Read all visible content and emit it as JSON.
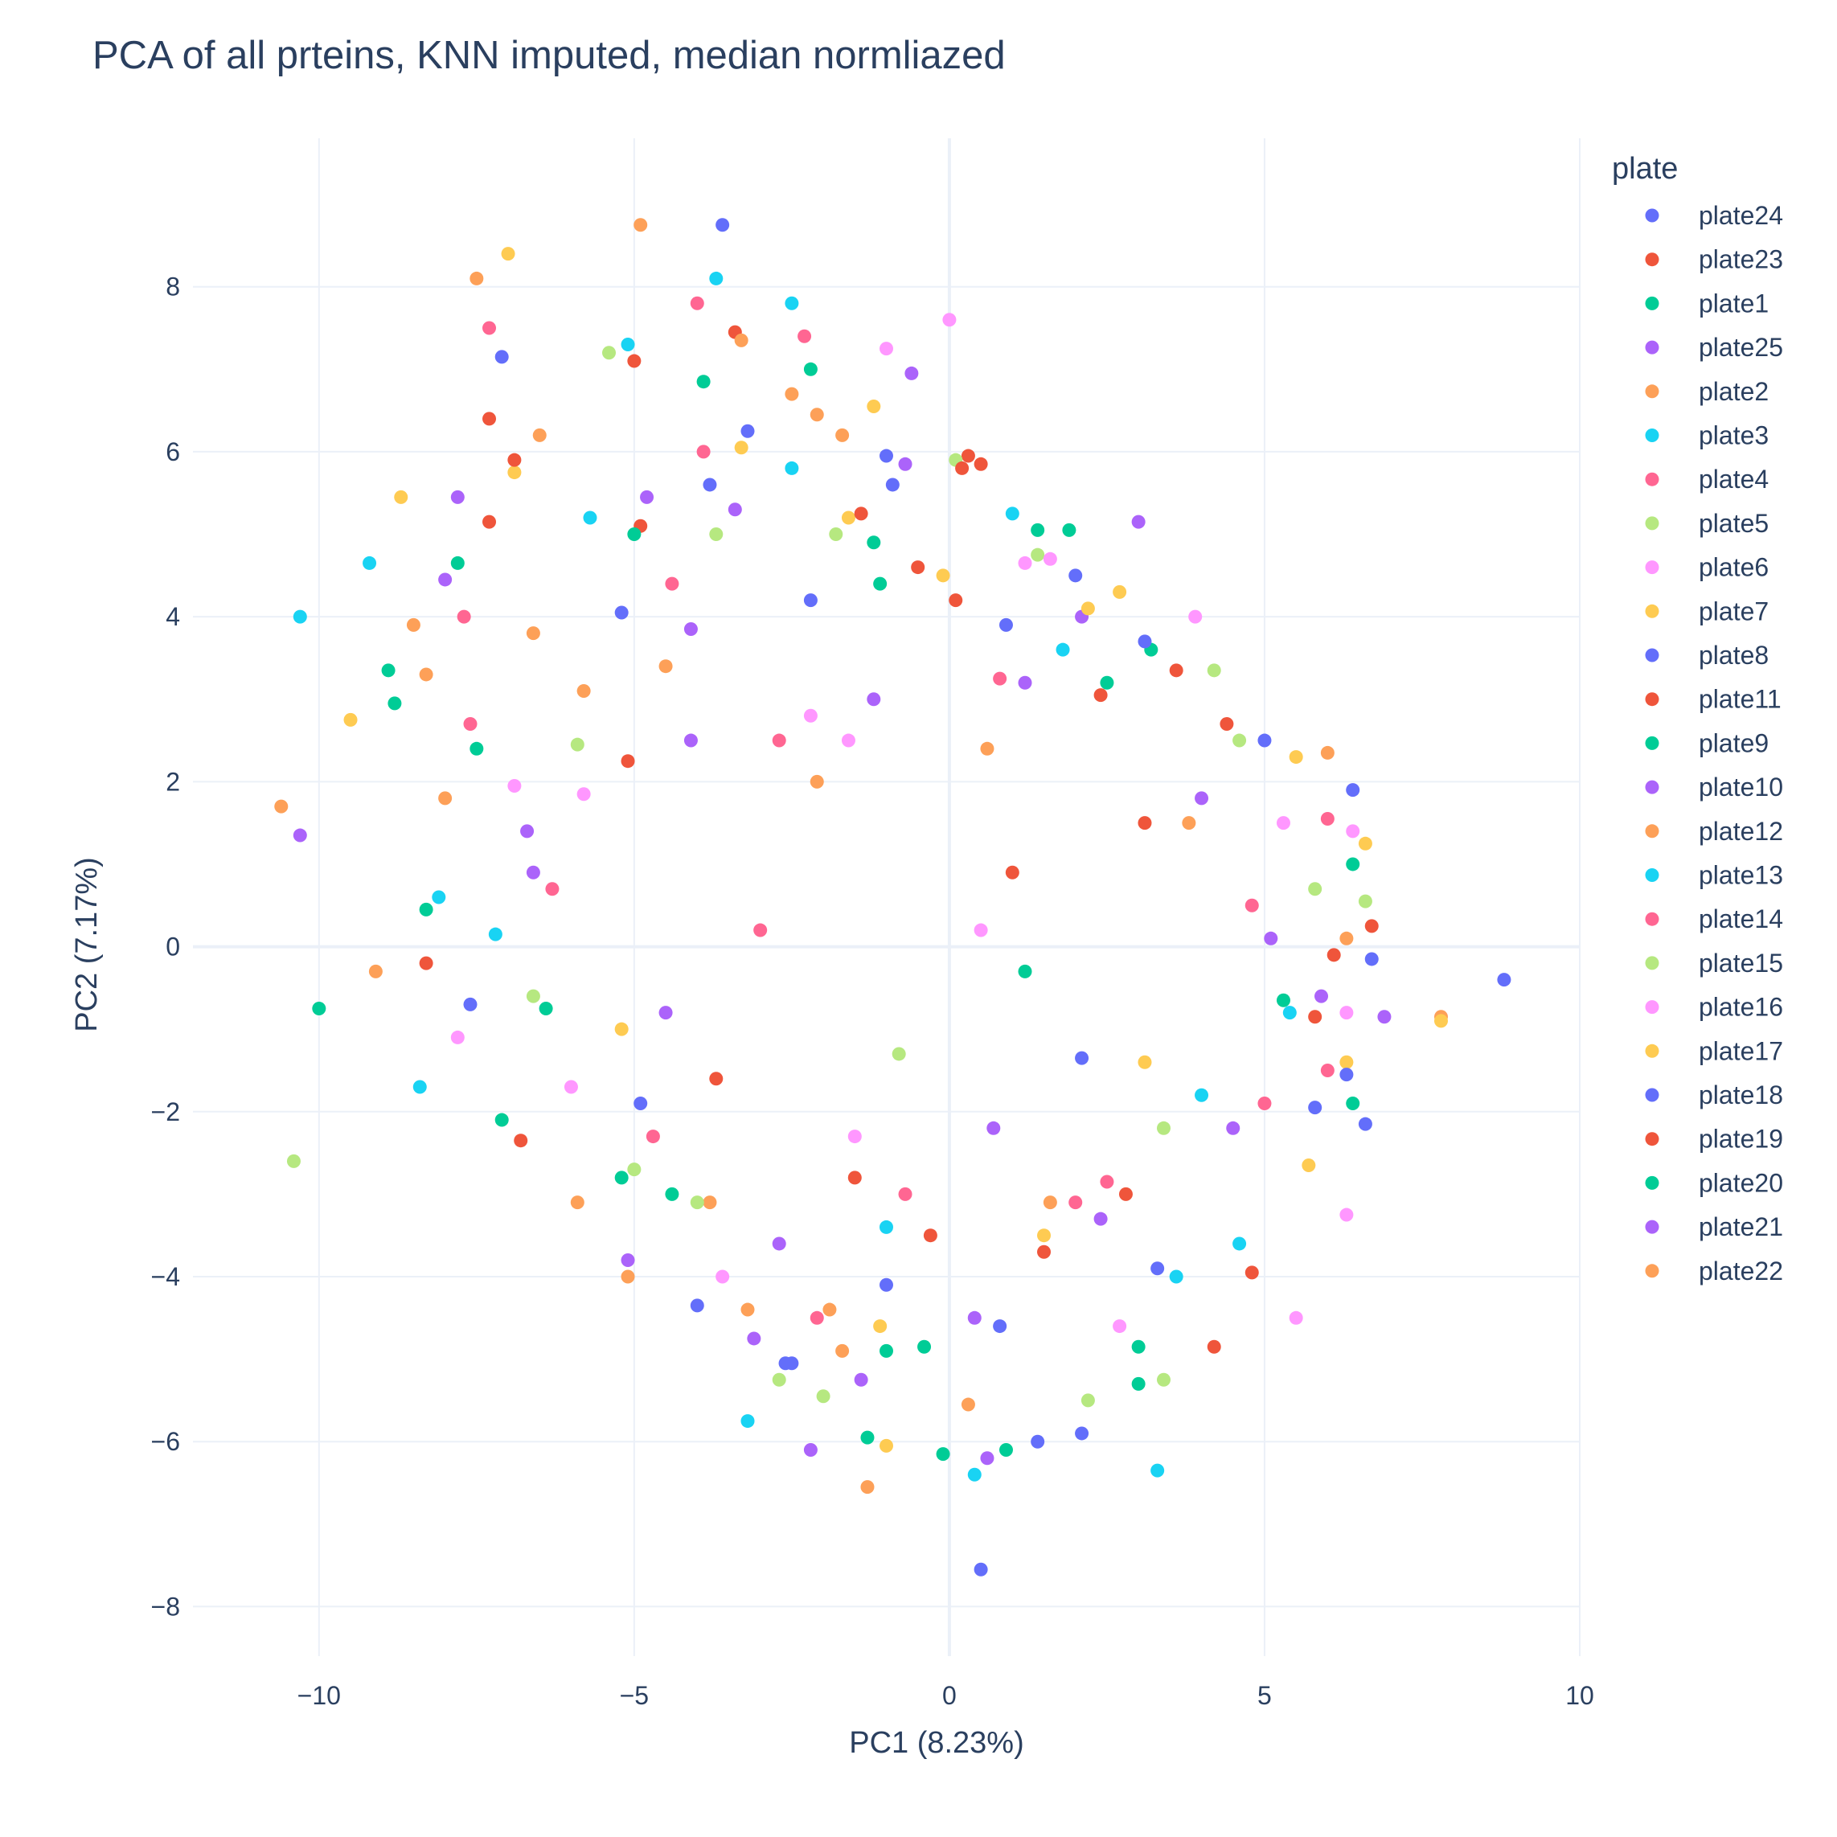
{
  "chart_data": {
    "type": "scatter",
    "title": "PCA of all prteins, KNN imputed, median normliazed",
    "xlabel": "PC1 (8.23%)",
    "ylabel": "PC2 (7.17%)",
    "xlim": [
      -12,
      10
    ],
    "ylim": [
      -8.6,
      9.8
    ],
    "x_ticks": [
      -10,
      -5,
      0,
      5,
      10
    ],
    "y_ticks": [
      -8,
      -6,
      -4,
      -2,
      0,
      2,
      4,
      6,
      8
    ],
    "x_tick_labels": [
      "−10",
      "−5",
      "0",
      "5",
      "10"
    ],
    "y_tick_labels": [
      "−8",
      "−6",
      "−4",
      "−2",
      "0",
      "2",
      "4",
      "6",
      "8"
    ],
    "grid": true,
    "legend_title": "plate",
    "legend_position": "right",
    "series": [
      {
        "name": "plate24",
        "color": "#636efa",
        "points": [
          [
            -3.6,
            8.75
          ],
          [
            -7.1,
            7.15
          ],
          [
            -2.2,
            4.2
          ],
          [
            6.4,
            1.9
          ],
          [
            8.8,
            -0.4
          ],
          [
            -1.0,
            -4.1
          ],
          [
            0.5,
            -7.55
          ],
          [
            2.1,
            -5.9
          ],
          [
            -4.0,
            -4.35
          ],
          [
            3.3,
            -3.9
          ]
        ]
      },
      {
        "name": "plate23",
        "color": "#ef553b",
        "points": [
          [
            -3.4,
            7.45
          ],
          [
            -7.3,
            6.4
          ],
          [
            0.3,
            5.95
          ],
          [
            6.7,
            0.25
          ],
          [
            -8.3,
            -0.2
          ],
          [
            4.8,
            -3.95
          ],
          [
            4.2,
            -4.85
          ],
          [
            -5.0,
            7.1
          ],
          [
            0.5,
            5.85
          ],
          [
            -6.8,
            -2.35
          ]
        ]
      },
      {
        "name": "plate1",
        "color": "#00cc96",
        "points": [
          [
            -3.9,
            6.85
          ],
          [
            -10.0,
            -0.75
          ],
          [
            -7.8,
            4.65
          ],
          [
            -2.2,
            7.0
          ],
          [
            1.4,
            5.05
          ],
          [
            -7.1,
            -2.1
          ],
          [
            -1.3,
            -5.95
          ],
          [
            3.0,
            -5.3
          ],
          [
            6.4,
            1.0
          ],
          [
            -8.8,
            2.95
          ]
        ]
      },
      {
        "name": "plate25",
        "color": "#ab63fa",
        "points": [
          [
            -10.3,
            1.35
          ],
          [
            -0.6,
            6.95
          ],
          [
            3.0,
            5.15
          ],
          [
            -7.8,
            5.45
          ],
          [
            -4.8,
            5.45
          ],
          [
            -2.2,
            -6.1
          ],
          [
            6.9,
            -0.85
          ],
          [
            -5.1,
            -3.8
          ],
          [
            0.6,
            -6.2
          ],
          [
            -8.0,
            4.45
          ]
        ]
      },
      {
        "name": "plate2",
        "color": "#fda058",
        "points": [
          [
            -4.9,
            8.75
          ],
          [
            -7.5,
            8.1
          ],
          [
            -10.6,
            1.7
          ],
          [
            -9.1,
            -0.3
          ],
          [
            -1.3,
            -6.55
          ],
          [
            -2.5,
            6.7
          ],
          [
            -6.5,
            6.2
          ],
          [
            -8.5,
            3.9
          ],
          [
            -5.1,
            -4.0
          ],
          [
            7.8,
            -0.85
          ]
        ]
      },
      {
        "name": "plate3",
        "color": "#19d3f3",
        "points": [
          [
            -3.7,
            8.1
          ],
          [
            -10.3,
            4.0
          ],
          [
            -9.2,
            4.65
          ],
          [
            -5.1,
            7.3
          ],
          [
            -8.4,
            -1.7
          ],
          [
            -2.5,
            7.8
          ],
          [
            0.4,
            -6.4
          ],
          [
            3.3,
            -6.35
          ],
          [
            -3.2,
            -5.75
          ],
          [
            1.0,
            5.25
          ]
        ]
      },
      {
        "name": "plate4",
        "color": "#ff6692",
        "points": [
          [
            -4.0,
            7.8
          ],
          [
            -7.3,
            7.5
          ],
          [
            -2.3,
            7.4
          ],
          [
            -7.7,
            4.0
          ],
          [
            -3.9,
            6.0
          ],
          [
            6.0,
            1.55
          ],
          [
            -6.3,
            0.7
          ],
          [
            5.0,
            -1.9
          ],
          [
            -2.1,
            -4.5
          ],
          [
            2.0,
            -3.1
          ]
        ]
      },
      {
        "name": "plate5",
        "color": "#b6e880",
        "points": [
          [
            -5.4,
            7.2
          ],
          [
            -10.4,
            -2.6
          ],
          [
            0.1,
            5.9
          ],
          [
            -3.7,
            5.0
          ],
          [
            4.2,
            3.35
          ],
          [
            -2.7,
            -5.25
          ],
          [
            -2.0,
            -5.45
          ],
          [
            6.6,
            0.55
          ],
          [
            3.4,
            -5.25
          ],
          [
            -5.0,
            -2.7
          ]
        ]
      },
      {
        "name": "plate6",
        "color": "#ff97ff",
        "points": [
          [
            0.0,
            7.6
          ],
          [
            -1.0,
            7.25
          ],
          [
            3.9,
            4.0
          ],
          [
            6.3,
            -3.25
          ],
          [
            5.5,
            -4.5
          ],
          [
            -7.8,
            -1.1
          ],
          [
            -6.9,
            1.95
          ],
          [
            1.2,
            4.65
          ],
          [
            -1.6,
            2.5
          ],
          [
            6.4,
            1.4
          ]
        ]
      },
      {
        "name": "plate7",
        "color": "#fecb52",
        "points": [
          [
            -7.0,
            8.4
          ],
          [
            -8.7,
            5.45
          ],
          [
            -9.5,
            2.75
          ],
          [
            -1.2,
            6.55
          ],
          [
            2.7,
            4.3
          ],
          [
            7.8,
            -0.9
          ],
          [
            6.6,
            1.25
          ],
          [
            -1.0,
            -6.05
          ],
          [
            5.7,
            -2.65
          ],
          [
            -6.9,
            5.75
          ]
        ]
      },
      {
        "name": "plate8",
        "color": "#636efa",
        "points": [
          [
            -3.8,
            5.6
          ],
          [
            -5.2,
            4.05
          ],
          [
            -1.0,
            5.95
          ],
          [
            2.0,
            4.5
          ],
          [
            6.7,
            -0.15
          ],
          [
            5.0,
            2.5
          ],
          [
            6.6,
            -2.15
          ],
          [
            -2.5,
            -5.05
          ],
          [
            1.4,
            -6.0
          ],
          [
            -7.6,
            -0.7
          ]
        ]
      },
      {
        "name": "plate11",
        "color": "#ef553b",
        "points": [
          [
            -7.3,
            5.15
          ],
          [
            -6.9,
            5.9
          ],
          [
            -0.5,
            4.6
          ],
          [
            0.2,
            5.8
          ],
          [
            3.6,
            3.35
          ],
          [
            -5.1,
            2.25
          ],
          [
            5.8,
            -0.85
          ],
          [
            1.5,
            -3.7
          ],
          [
            -1.5,
            -2.8
          ],
          [
            3.1,
            1.5
          ]
        ]
      },
      {
        "name": "plate9",
        "color": "#00cc96",
        "points": [
          [
            -8.9,
            3.35
          ],
          [
            -8.3,
            0.45
          ],
          [
            -1.2,
            4.9
          ],
          [
            3.2,
            3.6
          ],
          [
            1.9,
            5.05
          ],
          [
            5.3,
            -0.65
          ],
          [
            -1.0,
            -4.9
          ],
          [
            -5.2,
            -2.8
          ],
          [
            -0.1,
            -6.15
          ],
          [
            0.9,
            -6.1
          ]
        ]
      },
      {
        "name": "plate10",
        "color": "#ab63fa",
        "points": [
          [
            -3.4,
            5.3
          ],
          [
            -6.6,
            0.9
          ],
          [
            -4.1,
            3.85
          ],
          [
            2.1,
            4.0
          ],
          [
            5.1,
            0.1
          ],
          [
            4.5,
            -2.2
          ],
          [
            -1.4,
            -5.25
          ],
          [
            0.4,
            -4.5
          ],
          [
            -3.1,
            -4.75
          ],
          [
            -0.7,
            5.85
          ]
        ]
      },
      {
        "name": "plate12",
        "color": "#fda058",
        "points": [
          [
            -3.3,
            7.35
          ],
          [
            -6.6,
            3.8
          ],
          [
            -8.3,
            3.3
          ],
          [
            -5.8,
            3.1
          ],
          [
            -2.1,
            6.45
          ],
          [
            -1.7,
            6.2
          ],
          [
            6.0,
            2.35
          ],
          [
            -1.9,
            -4.4
          ],
          [
            0.3,
            -5.55
          ],
          [
            -3.8,
            -3.1
          ]
        ]
      },
      {
        "name": "plate13",
        "color": "#19d3f3",
        "points": [
          [
            -7.2,
            0.15
          ],
          [
            -8.1,
            0.6
          ],
          [
            -5.7,
            5.2
          ],
          [
            -2.5,
            5.8
          ],
          [
            1.8,
            3.6
          ],
          [
            4.0,
            -1.8
          ],
          [
            5.4,
            -0.8
          ],
          [
            -1.0,
            -3.4
          ],
          [
            3.6,
            -4.0
          ],
          [
            4.6,
            -3.6
          ]
        ]
      },
      {
        "name": "plate14",
        "color": "#ff6692",
        "points": [
          [
            -7.6,
            2.7
          ],
          [
            -4.4,
            4.4
          ],
          [
            -2.7,
            2.5
          ],
          [
            0.8,
            3.25
          ],
          [
            4.8,
            0.5
          ],
          [
            6.0,
            -1.5
          ],
          [
            -0.7,
            -3.0
          ],
          [
            2.5,
            -2.85
          ],
          [
            -4.7,
            -2.3
          ],
          [
            -3.0,
            0.2
          ]
        ]
      },
      {
        "name": "plate15",
        "color": "#b6e880",
        "points": [
          [
            -5.9,
            2.45
          ],
          [
            -1.8,
            5.0
          ],
          [
            1.4,
            4.75
          ],
          [
            4.6,
            2.5
          ],
          [
            5.8,
            0.7
          ],
          [
            -0.8,
            -1.3
          ],
          [
            2.2,
            -5.5
          ],
          [
            -4.0,
            -3.1
          ],
          [
            -6.6,
            -0.6
          ],
          [
            3.4,
            -2.2
          ]
        ]
      },
      {
        "name": "plate16",
        "color": "#ff97ff",
        "points": [
          [
            -5.8,
            1.85
          ],
          [
            -6.0,
            -1.7
          ],
          [
            -2.2,
            2.8
          ],
          [
            1.6,
            4.7
          ],
          [
            5.3,
            1.5
          ],
          [
            6.3,
            -0.8
          ],
          [
            -1.5,
            -2.3
          ],
          [
            2.7,
            -4.6
          ],
          [
            -3.6,
            -4.0
          ],
          [
            0.5,
            0.2
          ]
        ]
      },
      {
        "name": "plate17",
        "color": "#fecb52",
        "points": [
          [
            -3.3,
            6.05
          ],
          [
            -1.6,
            5.2
          ],
          [
            -0.1,
            4.5
          ],
          [
            2.2,
            4.1
          ],
          [
            5.5,
            2.3
          ],
          [
            6.3,
            -1.4
          ],
          [
            -1.1,
            -4.6
          ],
          [
            1.5,
            -3.5
          ],
          [
            -5.2,
            -1.0
          ],
          [
            3.1,
            -1.4
          ]
        ]
      },
      {
        "name": "plate18",
        "color": "#636efa",
        "points": [
          [
            -3.2,
            6.25
          ],
          [
            -0.9,
            5.6
          ],
          [
            0.9,
            3.9
          ],
          [
            3.1,
            3.7
          ],
          [
            6.3,
            -1.55
          ],
          [
            5.8,
            -1.95
          ],
          [
            -2.6,
            -5.05
          ],
          [
            0.8,
            -4.6
          ],
          [
            -4.9,
            -1.9
          ],
          [
            2.1,
            -1.35
          ]
        ]
      },
      {
        "name": "plate19",
        "color": "#ef553b",
        "points": [
          [
            -4.9,
            5.1
          ],
          [
            -1.4,
            5.25
          ],
          [
            0.1,
            4.2
          ],
          [
            2.4,
            3.05
          ],
          [
            4.4,
            2.7
          ],
          [
            6.1,
            -0.1
          ],
          [
            -0.3,
            -3.5
          ],
          [
            2.8,
            -3.0
          ],
          [
            -3.7,
            -1.6
          ],
          [
            1.0,
            0.9
          ]
        ]
      },
      {
        "name": "plate20",
        "color": "#00cc96",
        "points": [
          [
            -6.4,
            -0.75
          ],
          [
            -7.5,
            2.4
          ],
          [
            -5.0,
            5.0
          ],
          [
            -1.1,
            4.4
          ],
          [
            2.5,
            3.2
          ],
          [
            6.4,
            -1.9
          ],
          [
            -0.4,
            -4.85
          ],
          [
            3.0,
            -4.85
          ],
          [
            -4.4,
            -3.0
          ],
          [
            1.2,
            -0.3
          ]
        ]
      },
      {
        "name": "plate21",
        "color": "#ab63fa",
        "points": [
          [
            -6.7,
            1.4
          ],
          [
            -4.1,
            2.5
          ],
          [
            -1.2,
            3.0
          ],
          [
            1.2,
            3.2
          ],
          [
            4.0,
            1.8
          ],
          [
            5.9,
            -0.6
          ],
          [
            -2.7,
            -3.6
          ],
          [
            0.7,
            -2.2
          ],
          [
            -4.5,
            -0.8
          ],
          [
            2.4,
            -3.3
          ]
        ]
      },
      {
        "name": "plate22",
        "color": "#fda058",
        "points": [
          [
            -8.0,
            1.8
          ],
          [
            -4.5,
            3.4
          ],
          [
            -2.1,
            2.0
          ],
          [
            0.6,
            2.4
          ],
          [
            3.8,
            1.5
          ],
          [
            6.3,
            0.1
          ],
          [
            -1.7,
            -4.9
          ],
          [
            1.6,
            -3.1
          ],
          [
            -5.9,
            -3.1
          ],
          [
            -3.2,
            -4.4
          ]
        ]
      }
    ]
  }
}
